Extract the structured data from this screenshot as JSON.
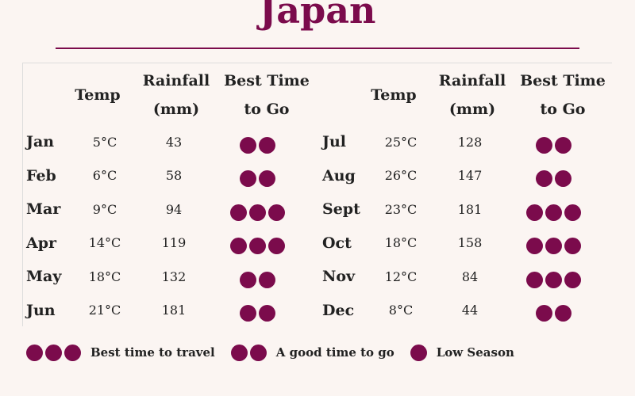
{
  "title": "Japan",
  "headers": {
    "temp": "Temp",
    "rainfall_1": "Rainfall",
    "rainfall_2": "(mm)",
    "best_1": "Best Time",
    "best_2": "to Go"
  },
  "colors": {
    "accent": "#7b0b4c",
    "background": "#fbf5f2"
  },
  "months_left": [
    {
      "month": "Jan",
      "temp": "5°C",
      "rain": "43",
      "best": 2
    },
    {
      "month": "Feb",
      "temp": "6°C",
      "rain": "58",
      "best": 2
    },
    {
      "month": "Mar",
      "temp": "9°C",
      "rain": "94",
      "best": 3
    },
    {
      "month": "Apr",
      "temp": "14°C",
      "rain": "119",
      "best": 3
    },
    {
      "month": "May",
      "temp": "18°C",
      "rain": "132",
      "best": 2
    },
    {
      "month": "Jun",
      "temp": "21°C",
      "rain": "181",
      "best": 2
    }
  ],
  "months_right": [
    {
      "month": "Jul",
      "temp": "25°C",
      "rain": "128",
      "best": 2
    },
    {
      "month": "Aug",
      "temp": "26°C",
      "rain": "147",
      "best": 2
    },
    {
      "month": "Sept",
      "temp": "23°C",
      "rain": "181",
      "best": 3
    },
    {
      "month": "Oct",
      "temp": "18°C",
      "rain": "158",
      "best": 3
    },
    {
      "month": "Nov",
      "temp": "12°C",
      "rain": "84",
      "best": 3
    },
    {
      "month": "Dec",
      "temp": "8°C",
      "rain": "44",
      "best": 2
    }
  ],
  "legend": [
    {
      "dots": 3,
      "label": "Best time to travel"
    },
    {
      "dots": 2,
      "label": "A good time to go"
    },
    {
      "dots": 1,
      "label": "Low Season"
    }
  ]
}
